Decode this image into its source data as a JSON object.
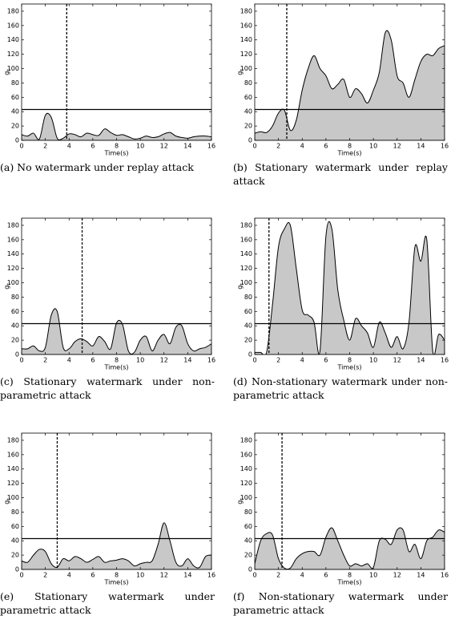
{
  "chart_data": [
    {
      "type": "area",
      "caption": "(a) No watermark under replay attack",
      "ylabel": "g",
      "ylabel_subscript": "t",
      "xlabel": "Time(s)",
      "x": [
        0,
        0.5,
        1,
        1.5,
        2,
        2.5,
        3,
        3.5,
        4,
        4.5,
        5,
        5.5,
        6,
        6.5,
        7,
        7.5,
        8,
        8.5,
        9,
        9.5,
        10,
        10.5,
        11,
        11.5,
        12,
        12.5,
        13,
        13.5,
        14,
        14.5,
        15,
        15.5,
        16
      ],
      "values": [
        8,
        6,
        10,
        2,
        35,
        32,
        3,
        3,
        9,
        8,
        5,
        10,
        8,
        7,
        16,
        11,
        7,
        8,
        5,
        2,
        3,
        6,
        4,
        5,
        9,
        11,
        6,
        4,
        3,
        5,
        6,
        6,
        5
      ],
      "threshold": 43,
      "detection_time": 3.8,
      "color": "#c8c8c8",
      "xlim": [
        0,
        16
      ],
      "ylim": [
        0,
        190
      ],
      "xticks": [
        0,
        2,
        4,
        6,
        8,
        10,
        12,
        14,
        16
      ],
      "yticks": [
        0,
        20,
        40,
        60,
        80,
        100,
        120,
        140,
        160,
        180
      ],
      "grid": false
    },
    {
      "type": "area",
      "caption": "(b) Stationary watermark under replay attack",
      "ylabel": "g",
      "ylabel_subscript": "t",
      "xlabel": "Time(s)",
      "x": [
        0,
        0.5,
        1,
        1.5,
        2,
        2.5,
        3,
        3.5,
        4,
        4.5,
        5,
        5.5,
        6,
        6.5,
        7,
        7.5,
        8,
        8.5,
        9,
        9.5,
        10,
        10.5,
        11,
        11.5,
        12,
        12.5,
        13,
        13.5,
        14,
        14.5,
        15,
        15.5,
        16
      ],
      "values": [
        10,
        12,
        11,
        20,
        38,
        42,
        14,
        28,
        70,
        100,
        118,
        100,
        90,
        72,
        78,
        85,
        60,
        72,
        65,
        52,
        70,
        95,
        150,
        140,
        90,
        80,
        60,
        85,
        110,
        120,
        118,
        128,
        132
      ],
      "threshold": 43,
      "detection_time": 2.7,
      "color": "#c8c8c8",
      "xlim": [
        0,
        16
      ],
      "ylim": [
        0,
        190
      ],
      "xticks": [
        0,
        2,
        4,
        6,
        8,
        10,
        12,
        14,
        16
      ],
      "yticks": [
        0,
        20,
        40,
        60,
        80,
        100,
        120,
        140,
        160,
        180
      ],
      "grid": false
    },
    {
      "type": "area",
      "caption": "(c) Stationary watermark under non-parametric attack",
      "ylabel": "g",
      "ylabel_subscript": "t",
      "xlabel": "Time(s)",
      "x": [
        0,
        0.5,
        1,
        1.5,
        2,
        2.5,
        3,
        3.5,
        4,
        4.5,
        5,
        5.5,
        6,
        6.5,
        7,
        7.5,
        8,
        8.5,
        9,
        9.5,
        10,
        10.5,
        11,
        11.5,
        12,
        12.5,
        13,
        13.5,
        14,
        14.5,
        15,
        15.5,
        16
      ],
      "values": [
        8,
        8,
        12,
        5,
        10,
        55,
        60,
        10,
        8,
        18,
        22,
        18,
        12,
        25,
        18,
        8,
        44,
        42,
        5,
        3,
        20,
        25,
        5,
        20,
        28,
        15,
        38,
        40,
        15,
        5,
        8,
        10,
        15
      ],
      "threshold": 43,
      "detection_time": 5.1,
      "color": "#c8c8c8",
      "xlim": [
        0,
        16
      ],
      "ylim": [
        0,
        190
      ],
      "xticks": [
        0,
        2,
        4,
        6,
        8,
        10,
        12,
        14,
        16
      ],
      "yticks": [
        0,
        20,
        40,
        60,
        80,
        100,
        120,
        140,
        160,
        180
      ],
      "grid": false
    },
    {
      "type": "area",
      "caption": "(d) Non-stationary watermark under non-parametric attack",
      "ylabel": "g",
      "ylabel_subscript": "t",
      "xlabel": "Time(s)",
      "x": [
        0,
        0.5,
        1,
        1.5,
        2,
        2.5,
        3,
        3.5,
        4,
        4.5,
        5,
        5.5,
        6,
        6.5,
        7,
        7.5,
        8,
        8.5,
        9,
        9.5,
        10,
        10.5,
        11,
        11.5,
        12,
        12.5,
        13,
        13.5,
        14,
        14.5,
        15,
        15.5,
        16
      ],
      "values": [
        3,
        3,
        3,
        70,
        150,
        175,
        180,
        120,
        62,
        55,
        45,
        5,
        165,
        175,
        90,
        48,
        20,
        50,
        40,
        30,
        10,
        45,
        30,
        10,
        25,
        8,
        45,
        150,
        130,
        160,
        5,
        28,
        20
      ],
      "threshold": 43,
      "detection_time": 1.2,
      "color": "#c8c8c8",
      "xlim": [
        0,
        16
      ],
      "ylim": [
        0,
        190
      ],
      "xticks": [
        0,
        2,
        4,
        6,
        8,
        10,
        12,
        14,
        16
      ],
      "yticks": [
        0,
        20,
        40,
        60,
        80,
        100,
        120,
        140,
        160,
        180
      ],
      "grid": false
    },
    {
      "type": "area",
      "caption": "(e) Stationary watermark under parametric attack",
      "ylabel": "g",
      "ylabel_subscript": "t",
      "xlabel": "Time(s)",
      "x": [
        0,
        0.5,
        1,
        1.5,
        2,
        2.5,
        3,
        3.5,
        4,
        4.5,
        5,
        5.5,
        6,
        6.5,
        7,
        7.5,
        8,
        8.5,
        9,
        9.5,
        10,
        10.5,
        11,
        11.5,
        12,
        12.5,
        13,
        13.5,
        14,
        14.5,
        15,
        15.5,
        16
      ],
      "values": [
        12,
        10,
        20,
        28,
        25,
        8,
        3,
        15,
        12,
        18,
        15,
        10,
        14,
        18,
        10,
        12,
        13,
        15,
        12,
        5,
        8,
        10,
        12,
        35,
        65,
        40,
        10,
        5,
        15,
        5,
        3,
        18,
        20
      ],
      "threshold": 43,
      "detection_time": 3.0,
      "color": "#c8c8c8",
      "xlim": [
        0,
        16
      ],
      "ylim": [
        0,
        190
      ],
      "xticks": [
        0,
        2,
        4,
        6,
        8,
        10,
        12,
        14,
        16
      ],
      "yticks": [
        0,
        20,
        40,
        60,
        80,
        100,
        120,
        140,
        160,
        180
      ],
      "grid": false
    },
    {
      "type": "area",
      "caption": "(f) Non-stationary watermark under parametric attack",
      "ylabel": "g",
      "ylabel_subscript": "t",
      "xlabel": "Time(s)",
      "x": [
        0,
        0.5,
        1,
        1.5,
        2,
        2.5,
        3,
        3.5,
        4,
        4.5,
        5,
        5.5,
        6,
        6.5,
        7,
        7.5,
        8,
        8.5,
        9,
        9.5,
        10,
        10.5,
        11,
        11.5,
        12,
        12.5,
        13,
        13.5,
        14,
        14.5,
        15,
        15.5,
        16
      ],
      "values": [
        8,
        40,
        50,
        48,
        15,
        2,
        2,
        15,
        22,
        25,
        25,
        20,
        45,
        58,
        40,
        20,
        5,
        8,
        5,
        8,
        3,
        40,
        42,
        35,
        55,
        55,
        25,
        35,
        15,
        40,
        45,
        55,
        52
      ],
      "threshold": 43,
      "detection_time": 2.3,
      "color": "#c8c8c8",
      "xlim": [
        0,
        16
      ],
      "ylim": [
        0,
        190
      ],
      "xticks": [
        0,
        2,
        4,
        6,
        8,
        10,
        12,
        14,
        16
      ],
      "yticks": [
        0,
        20,
        40,
        60,
        80,
        100,
        120,
        140,
        160,
        180
      ],
      "grid": false
    }
  ]
}
